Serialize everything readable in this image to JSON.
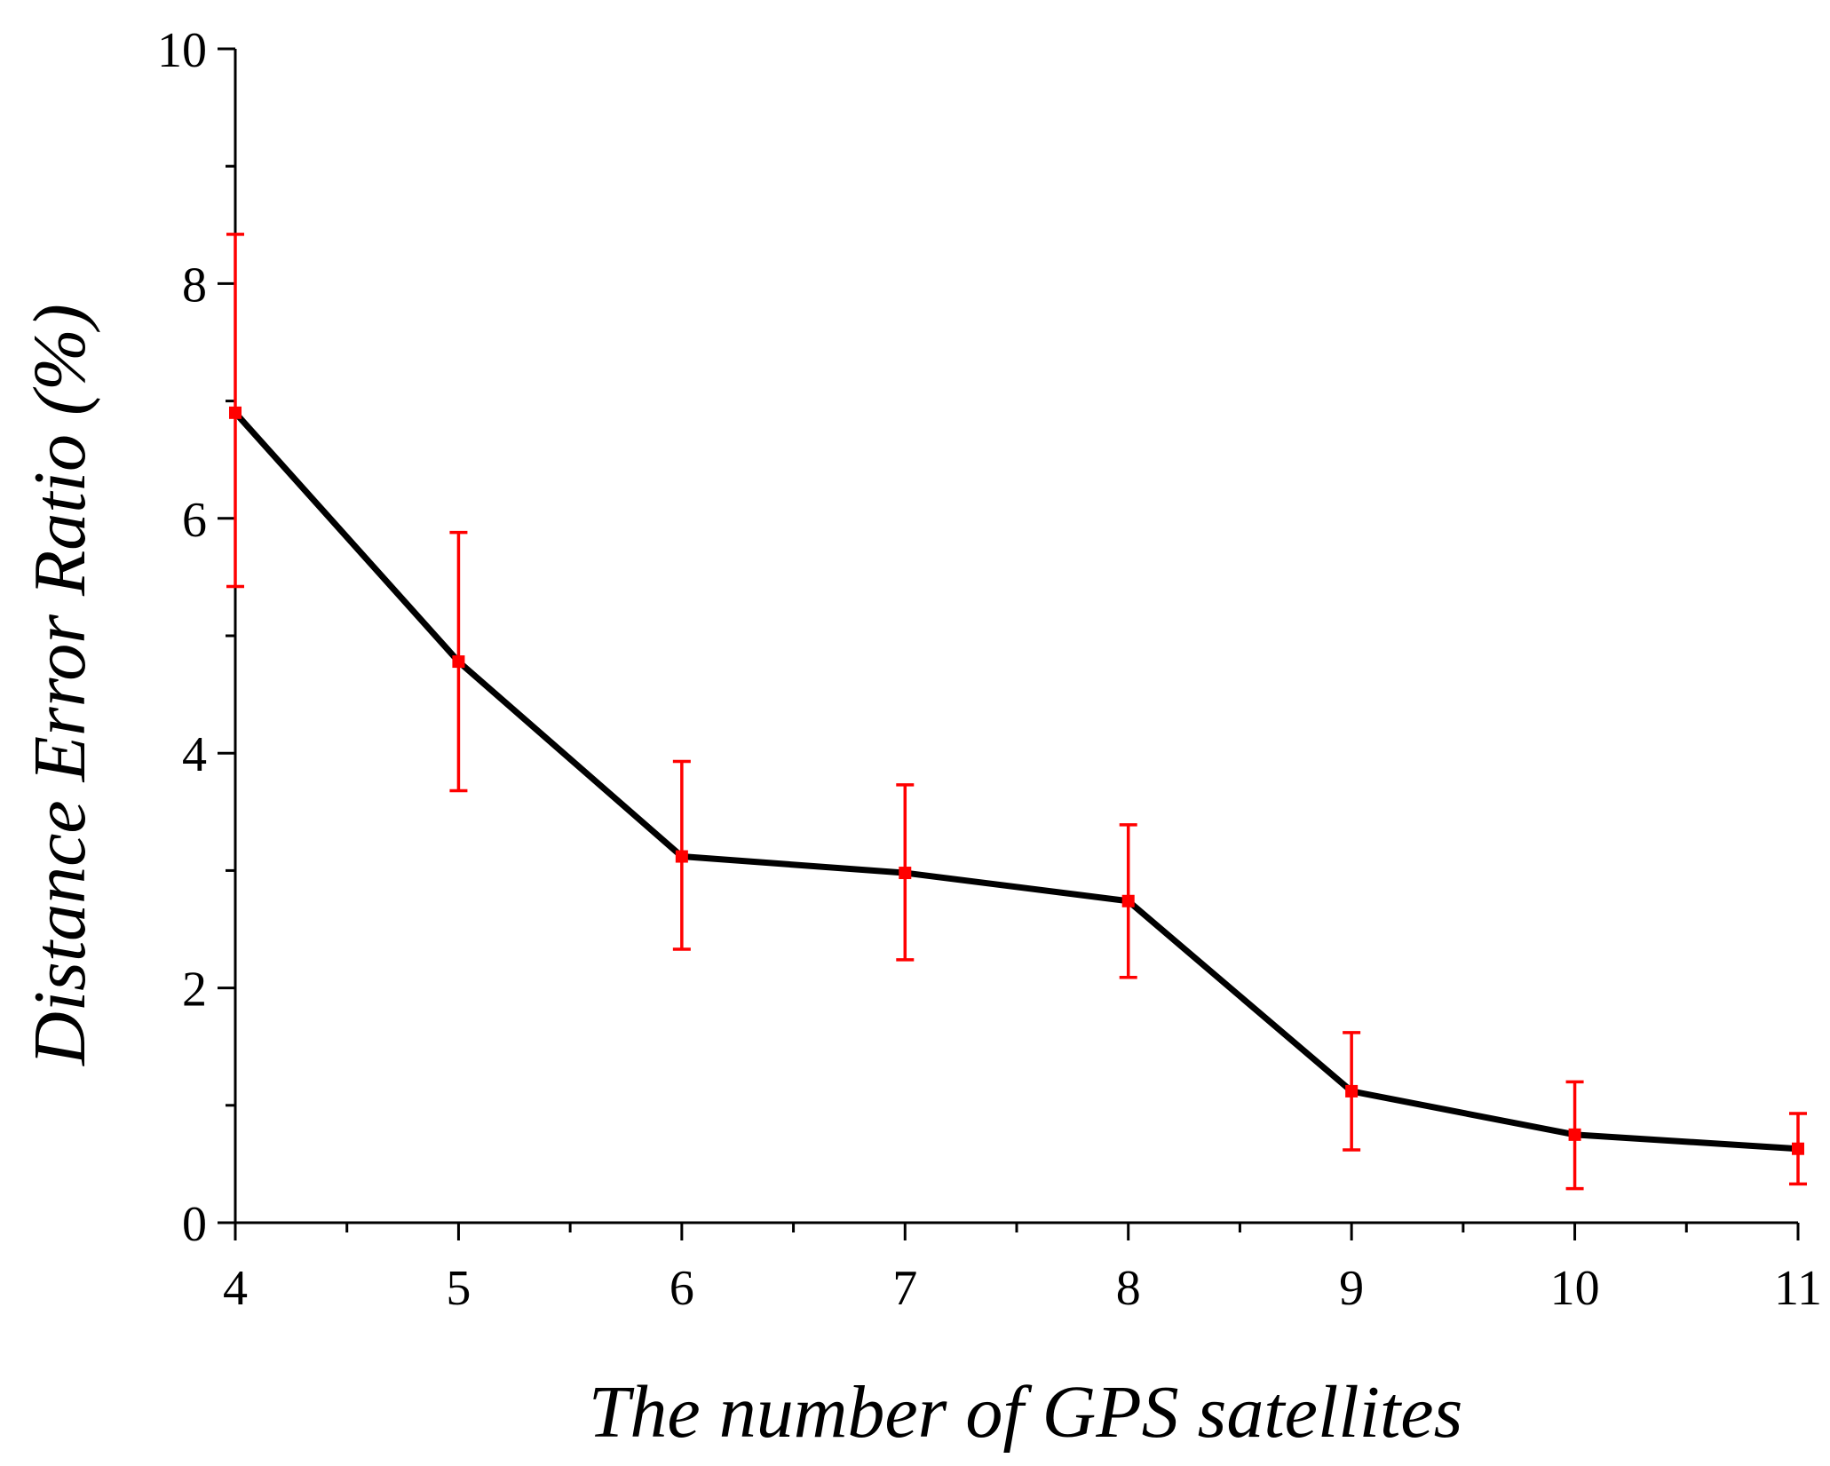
{
  "chart_data": {
    "type": "line",
    "title": "",
    "xlabel": "The number of GPS satellites",
    "ylabel": "Distance Error Ratio (%)",
    "x": [
      4,
      5,
      6,
      7,
      8,
      9,
      10,
      11
    ],
    "xlim": [
      4,
      11
    ],
    "ylim": [
      0,
      10
    ],
    "xticks": [
      "4",
      "5",
      "6",
      "7",
      "8",
      "9",
      "10",
      "11"
    ],
    "yticks": [
      "0",
      "2",
      "4",
      "6",
      "8",
      "10"
    ],
    "grid": false,
    "legend": "none",
    "series": [
      {
        "name": "Distance Error Ratio",
        "values": [
          6.9,
          4.78,
          3.12,
          2.98,
          2.74,
          1.12,
          0.75,
          0.63
        ],
        "error_low": [
          5.42,
          3.68,
          2.33,
          2.24,
          2.09,
          0.62,
          0.29,
          0.33
        ],
        "error_high": [
          8.42,
          5.88,
          3.93,
          3.73,
          3.39,
          1.62,
          1.2,
          0.93
        ],
        "line_color": "#000000",
        "marker_color": "#ff0000",
        "error_color": "#ff0000"
      }
    ]
  }
}
